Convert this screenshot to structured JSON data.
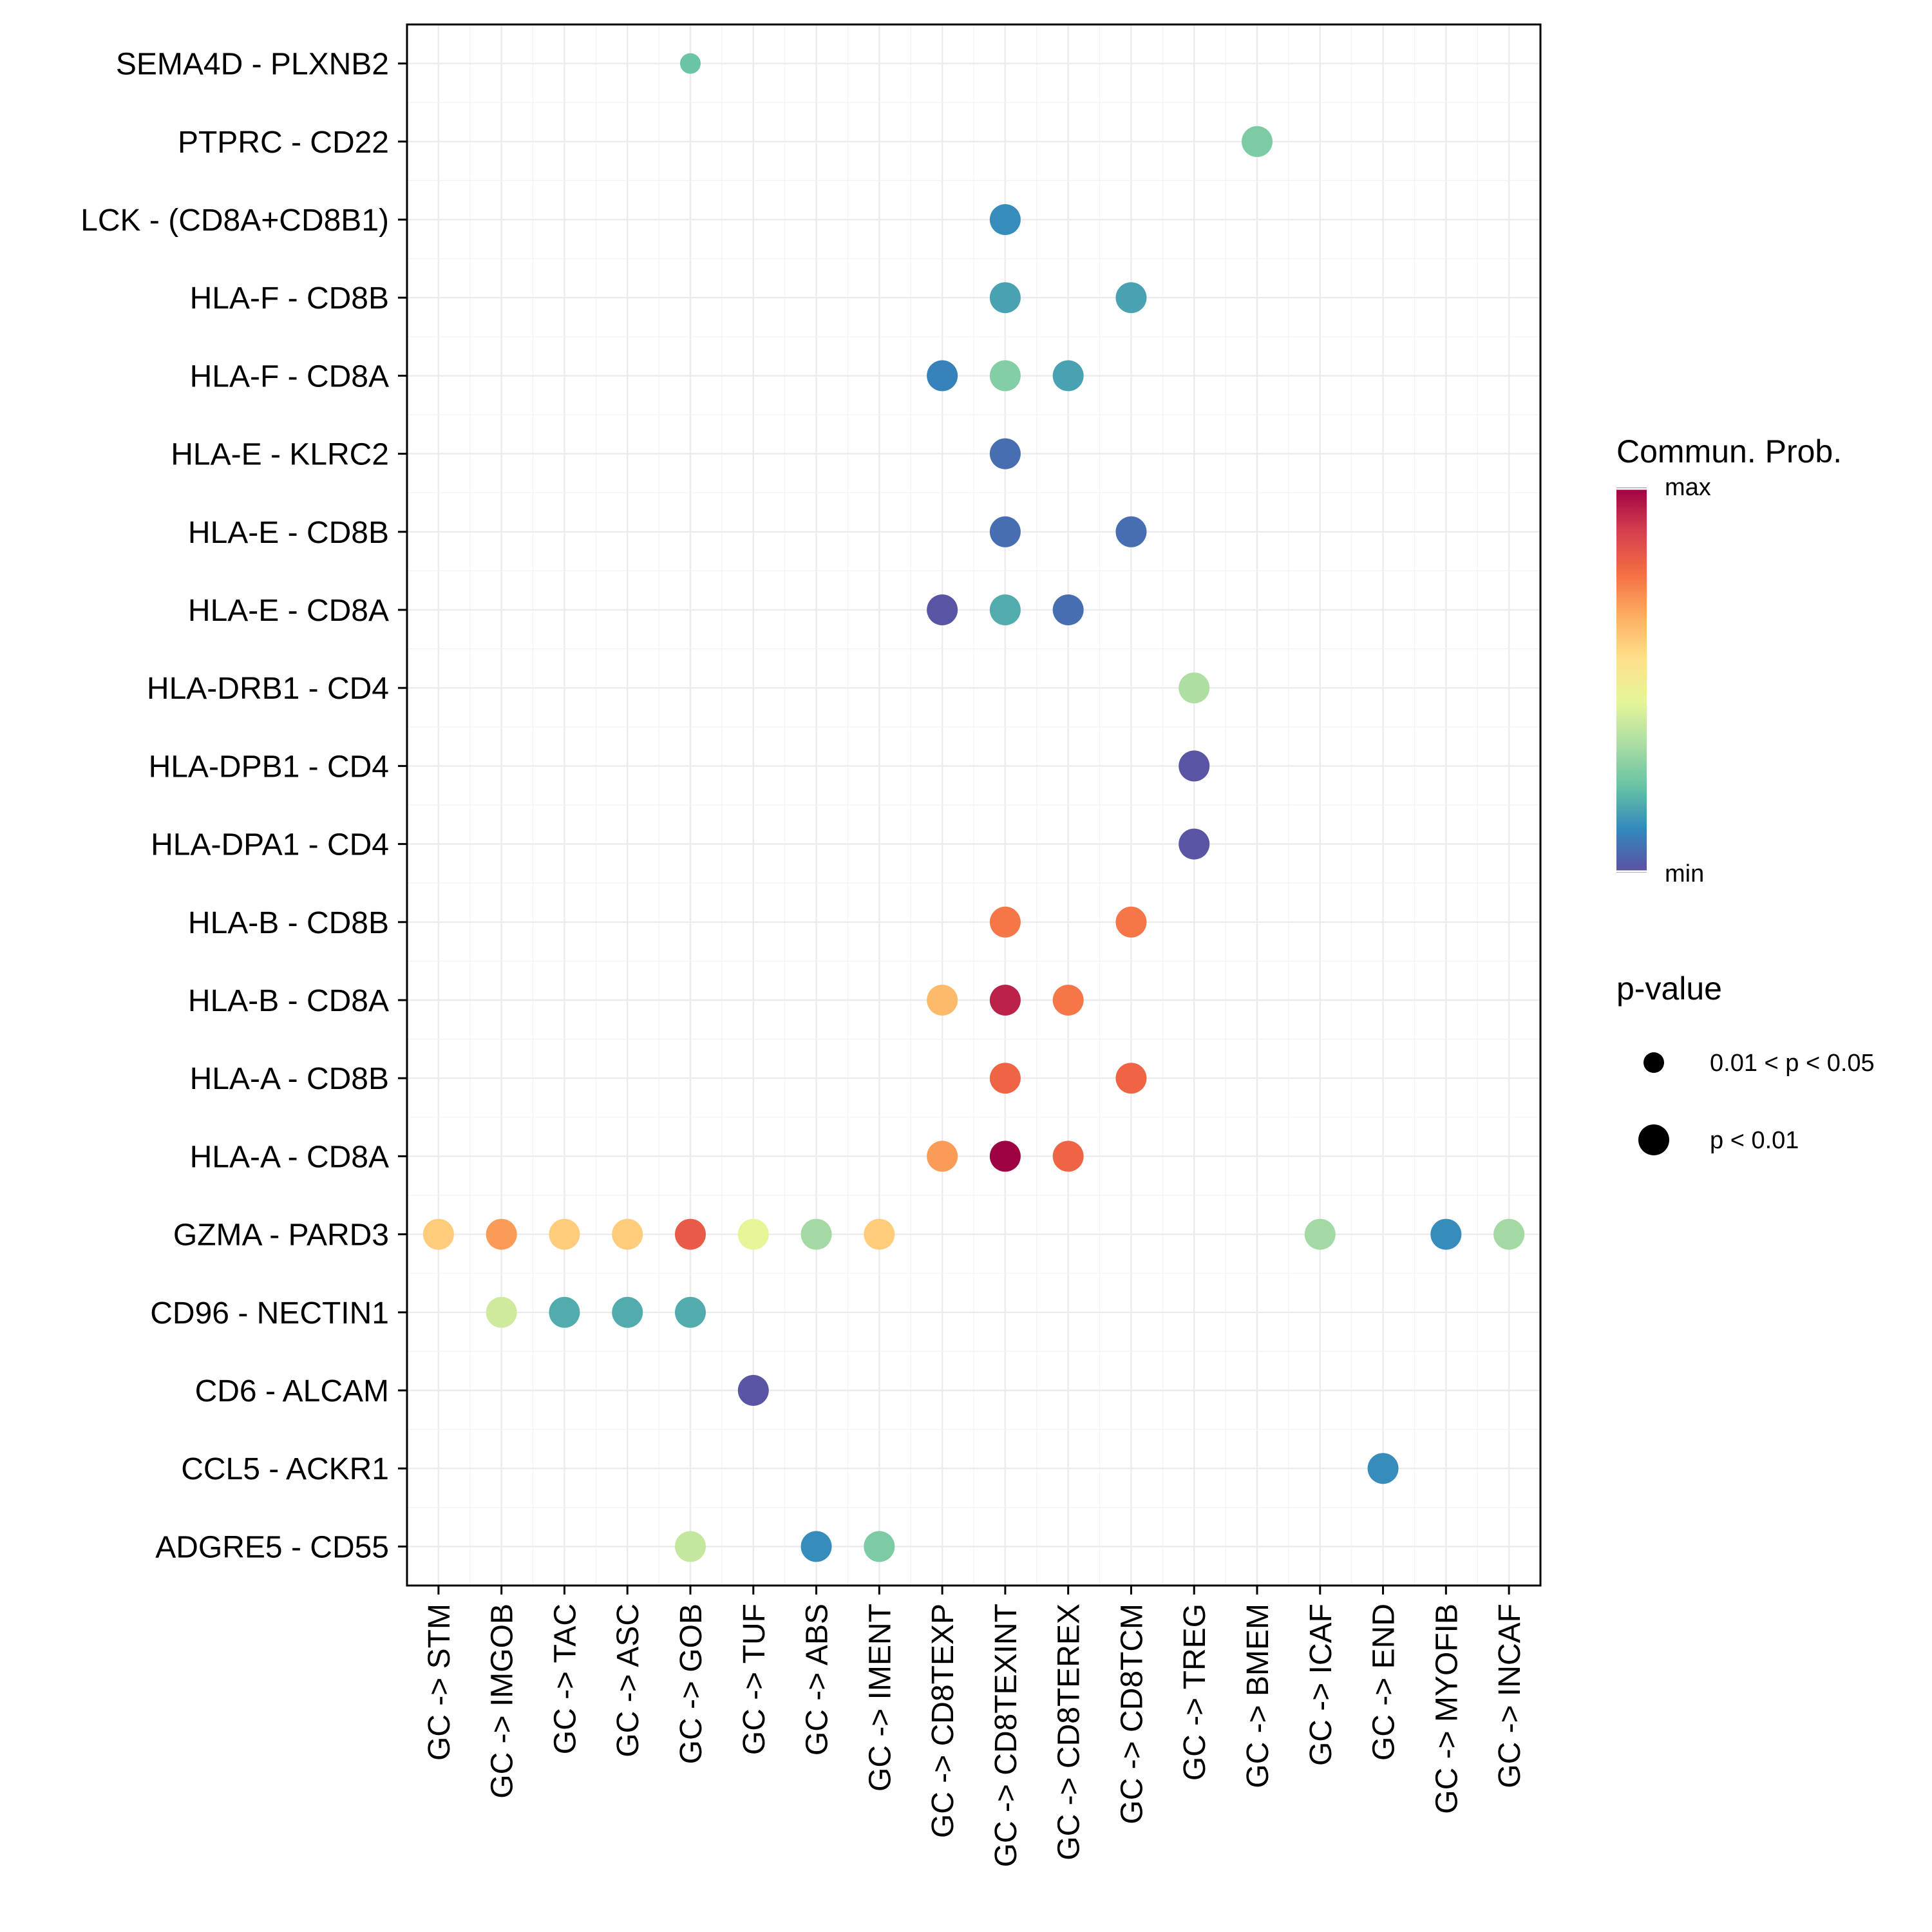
{
  "chart_data": {
    "type": "scatter",
    "subtype": "dot-plot",
    "x_categories": [
      "GC -> STM",
      "GC -> IMGOB",
      "GC -> TAC",
      "GC -> ASC",
      "GC -> GOB",
      "GC -> TUF",
      "GC -> ABS",
      "GC -> IMENT",
      "GC -> CD8TEXP",
      "GC -> CD8TEXINT",
      "GC -> CD8TEREX",
      "GC -> CD8TCM",
      "GC -> TREG",
      "GC -> BMEM",
      "GC -> ICAF",
      "GC -> END",
      "GC -> MYOFIB",
      "GC -> INCAF"
    ],
    "y_categories": [
      "SEMA4D - PLXNB2",
      "PTPRC - CD22",
      "LCK - (CD8A+CD8B1)",
      "HLA-F - CD8B",
      "HLA-F - CD8A",
      "HLA-E - KLRC2",
      "HLA-E - CD8B",
      "HLA-E - CD8A",
      "HLA-DRB1 - CD4",
      "HLA-DPB1 - CD4",
      "HLA-DPA1 - CD4",
      "HLA-B - CD8B",
      "HLA-B - CD8A",
      "HLA-A - CD8B",
      "HLA-A - CD8A",
      "GZMA - PARD3",
      "CD96 - NECTIN1",
      "CD6 - ALCAM",
      "CCL5 - ACKR1",
      "ADGRE5 - CD55"
    ],
    "colormap": [
      "#5e4fa2",
      "#3288bd",
      "#66c2a5",
      "#abdda4",
      "#e6f598",
      "#fee08b",
      "#fdae61",
      "#f46d43",
      "#d53e4f",
      "#9e0142"
    ],
    "points": [
      {
        "y": "SEMA4D - PLXNB2",
        "x": "GC -> GOB",
        "prob": 0.23,
        "pval": "0.01 < p < 0.05"
      },
      {
        "y": "PTPRC - CD22",
        "x": "GC -> BMEM",
        "prob": 0.26,
        "pval": "p < 0.01"
      },
      {
        "y": "LCK - (CD8A+CD8B1)",
        "x": "GC -> CD8TEXINT",
        "prob": 0.12,
        "pval": "p < 0.01"
      },
      {
        "y": "HLA-F - CD8B",
        "x": "GC -> CD8TEXINT",
        "prob": 0.16,
        "pval": "p < 0.01"
      },
      {
        "y": "HLA-F - CD8B",
        "x": "GC -> CD8TCM",
        "prob": 0.16,
        "pval": "p < 0.01"
      },
      {
        "y": "HLA-F - CD8A",
        "x": "GC -> CD8TEXP",
        "prob": 0.1,
        "pval": "p < 0.01"
      },
      {
        "y": "HLA-F - CD8A",
        "x": "GC -> CD8TEXINT",
        "prob": 0.27,
        "pval": "p < 0.01"
      },
      {
        "y": "HLA-F - CD8A",
        "x": "GC -> CD8TEREX",
        "prob": 0.16,
        "pval": "p < 0.01"
      },
      {
        "y": "HLA-E - KLRC2",
        "x": "GC -> CD8TEXINT",
        "prob": 0.06,
        "pval": "p < 0.01"
      },
      {
        "y": "HLA-E - CD8B",
        "x": "GC -> CD8TEXINT",
        "prob": 0.06,
        "pval": "p < 0.01"
      },
      {
        "y": "HLA-E - CD8B",
        "x": "GC -> CD8TCM",
        "prob": 0.06,
        "pval": "p < 0.01"
      },
      {
        "y": "HLA-E - CD8A",
        "x": "GC -> CD8TEXP",
        "prob": 0.01,
        "pval": "p < 0.01"
      },
      {
        "y": "HLA-E - CD8A",
        "x": "GC -> CD8TEXINT",
        "prob": 0.18,
        "pval": "p < 0.01"
      },
      {
        "y": "HLA-E - CD8A",
        "x": "GC -> CD8TEREX",
        "prob": 0.06,
        "pval": "p < 0.01"
      },
      {
        "y": "HLA-DRB1 - CD4",
        "x": "GC -> TREG",
        "prob": 0.34,
        "pval": "p < 0.01"
      },
      {
        "y": "HLA-DPB1 - CD4",
        "x": "GC -> TREG",
        "prob": 0.01,
        "pval": "p < 0.01"
      },
      {
        "y": "HLA-DPA1 - CD4",
        "x": "GC -> TREG",
        "prob": 0.01,
        "pval": "p < 0.01"
      },
      {
        "y": "HLA-B - CD8B",
        "x": "GC -> CD8TEXINT",
        "prob": 0.76,
        "pval": "p < 0.01"
      },
      {
        "y": "HLA-B - CD8B",
        "x": "GC -> CD8TCM",
        "prob": 0.76,
        "pval": "p < 0.01"
      },
      {
        "y": "HLA-B - CD8A",
        "x": "GC -> CD8TEXP",
        "prob": 0.64,
        "pval": "p < 0.01"
      },
      {
        "y": "HLA-B - CD8A",
        "x": "GC -> CD8TEXINT",
        "prob": 0.94,
        "pval": "p < 0.01"
      },
      {
        "y": "HLA-B - CD8A",
        "x": "GC -> CD8TEREX",
        "prob": 0.76,
        "pval": "p < 0.01"
      },
      {
        "y": "HLA-A - CD8B",
        "x": "GC -> CD8TEXINT",
        "prob": 0.8,
        "pval": "p < 0.01"
      },
      {
        "y": "HLA-A - CD8B",
        "x": "GC -> CD8TCM",
        "prob": 0.8,
        "pval": "p < 0.01"
      },
      {
        "y": "HLA-A - CD8A",
        "x": "GC -> CD8TEXP",
        "prob": 0.7,
        "pval": "p < 0.01"
      },
      {
        "y": "HLA-A - CD8A",
        "x": "GC -> CD8TEXINT",
        "prob": 1.0,
        "pval": "p < 0.01"
      },
      {
        "y": "HLA-A - CD8A",
        "x": "GC -> CD8TEREX",
        "prob": 0.8,
        "pval": "p < 0.01"
      },
      {
        "y": "GZMA - PARD3",
        "x": "GC -> STM",
        "prob": 0.6,
        "pval": "p < 0.01"
      },
      {
        "y": "GZMA - PARD3",
        "x": "GC -> IMGOB",
        "prob": 0.7,
        "pval": "p < 0.01"
      },
      {
        "y": "GZMA - PARD3",
        "x": "GC -> TAC",
        "prob": 0.6,
        "pval": "p < 0.01"
      },
      {
        "y": "GZMA - PARD3",
        "x": "GC -> ASC",
        "prob": 0.6,
        "pval": "p < 0.01"
      },
      {
        "y": "GZMA - PARD3",
        "x": "GC -> GOB",
        "prob": 0.82,
        "pval": "p < 0.01"
      },
      {
        "y": "GZMA - PARD3",
        "x": "GC -> TUF",
        "prob": 0.45,
        "pval": "p < 0.01"
      },
      {
        "y": "GZMA - PARD3",
        "x": "GC -> ABS",
        "prob": 0.32,
        "pval": "p < 0.01"
      },
      {
        "y": "GZMA - PARD3",
        "x": "GC -> IMENT",
        "prob": 0.6,
        "pval": "p < 0.01"
      },
      {
        "y": "GZMA - PARD3",
        "x": "GC -> ICAF",
        "prob": 0.32,
        "pval": "p < 0.01"
      },
      {
        "y": "GZMA - PARD3",
        "x": "GC -> MYOFIB",
        "prob": 0.12,
        "pval": "p < 0.01"
      },
      {
        "y": "GZMA - PARD3",
        "x": "GC -> INCAF",
        "prob": 0.32,
        "pval": "p < 0.01"
      },
      {
        "y": "CD96 - NECTIN1",
        "x": "GC -> IMGOB",
        "prob": 0.4,
        "pval": "p < 0.01"
      },
      {
        "y": "CD96 - NECTIN1",
        "x": "GC -> TAC",
        "prob": 0.18,
        "pval": "p < 0.01"
      },
      {
        "y": "CD96 - NECTIN1",
        "x": "GC -> ASC",
        "prob": 0.18,
        "pval": "p < 0.01"
      },
      {
        "y": "CD96 - NECTIN1",
        "x": "GC -> GOB",
        "prob": 0.18,
        "pval": "p < 0.01"
      },
      {
        "y": "CD6 - ALCAM",
        "x": "GC -> TUF",
        "prob": 0.01,
        "pval": "p < 0.01"
      },
      {
        "y": "CCL5 - ACKR1",
        "x": "GC -> END",
        "prob": 0.12,
        "pval": "p < 0.01"
      },
      {
        "y": "ADGRE5 - CD55",
        "x": "GC -> GOB",
        "prob": 0.38,
        "pval": "p < 0.01"
      },
      {
        "y": "ADGRE5 - CD55",
        "x": "GC -> ABS",
        "prob": 0.12,
        "pval": "p < 0.01"
      },
      {
        "y": "ADGRE5 - CD55",
        "x": "GC -> IMENT",
        "prob": 0.26,
        "pval": "p < 0.01"
      }
    ],
    "legend": {
      "color_title": "Commun. Prob.",
      "color_max_label": "max",
      "color_min_label": "min",
      "size_title": "p-value",
      "size_items": [
        "0.01 < p < 0.05",
        "p < 0.01"
      ]
    },
    "grid": true,
    "legend_position": "right"
  }
}
